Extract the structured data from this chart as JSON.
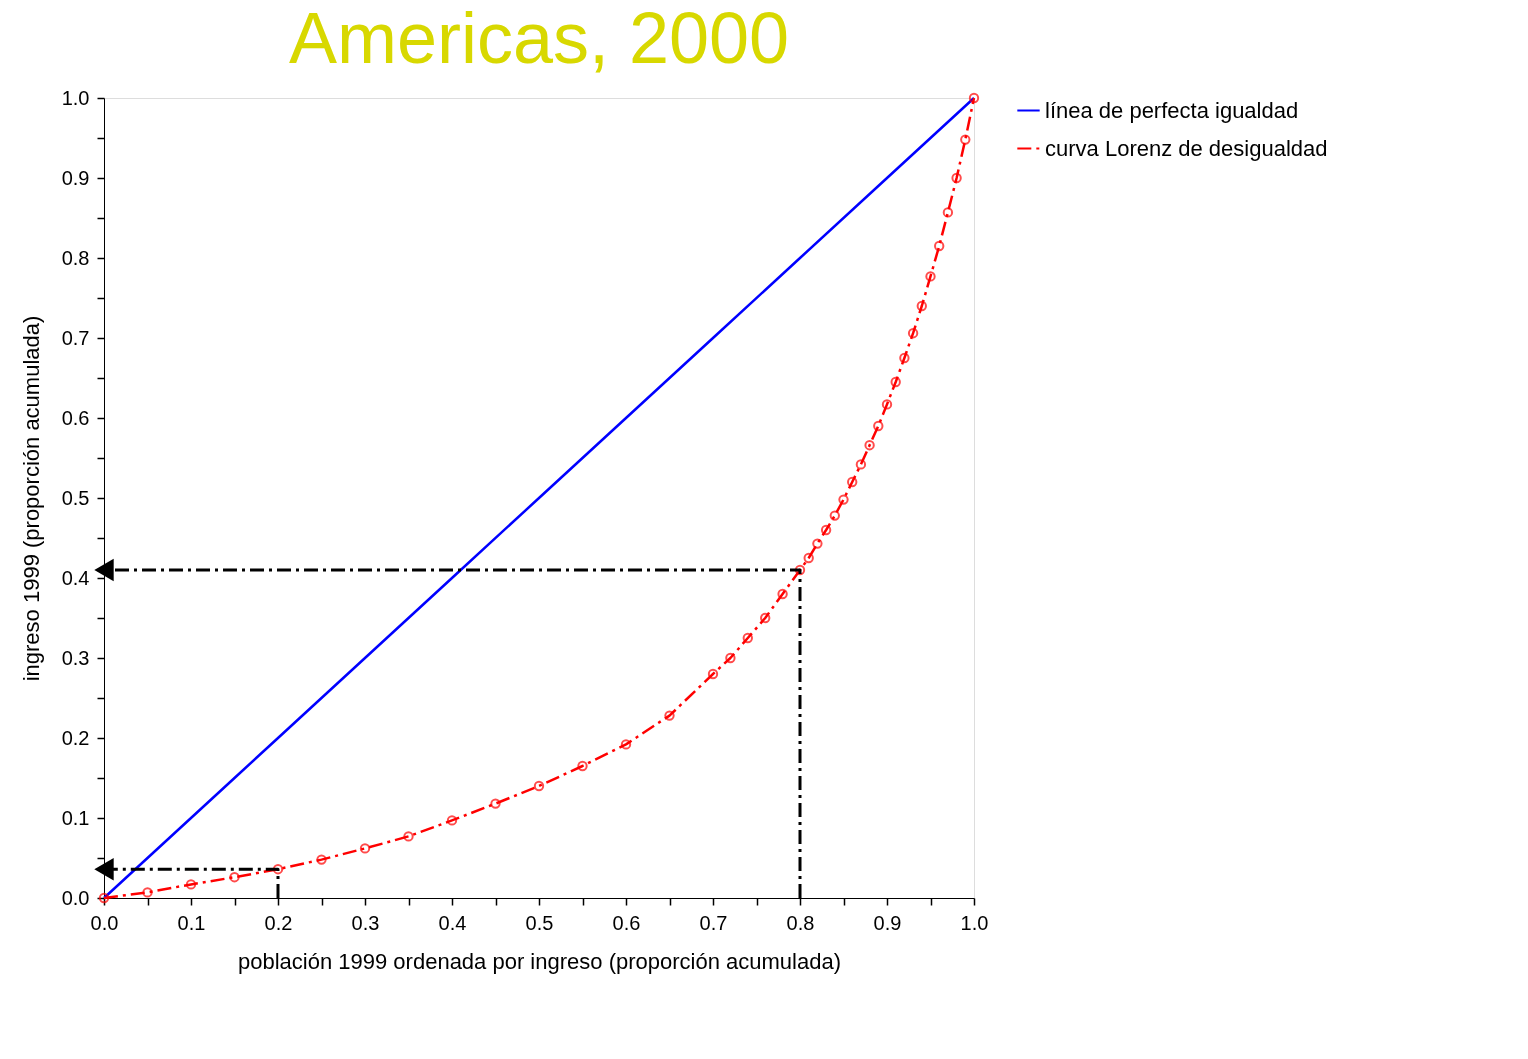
{
  "chart_data": {
    "type": "line",
    "title": "Americas, 2000",
    "xlabel": "población 1999 ordenada por ingreso (proporción acumulada)",
    "ylabel": "ingreso 1999 (proporción acumulada)",
    "xlim": [
      0,
      1
    ],
    "ylim": [
      0,
      1
    ],
    "xticks": [
      {
        "value": 0,
        "label": "0.0"
      },
      {
        "value": 0.05,
        "label": null
      },
      0.1,
      {
        "value": 0.15,
        "label": null
      },
      0.2,
      {
        "value": 0.25,
        "label": null
      },
      0.3,
      {
        "value": 0.35,
        "label": null
      },
      0.4,
      {
        "value": 0.45,
        "label": null
      },
      0.5,
      {
        "value": 0.55,
        "label": null
      },
      0.6,
      {
        "value": 0.65,
        "label": null
      },
      0.7,
      {
        "value": 0.75,
        "label": null
      },
      0.8,
      {
        "value": 0.85,
        "label": null
      },
      0.9,
      {
        "value": 0.95,
        "label": null
      },
      {
        "value": 1,
        "label": "1.0"
      }
    ],
    "yticks": [
      {
        "value": 0,
        "label": "0.0"
      },
      {
        "value": 0.05,
        "label": null
      },
      0.1,
      {
        "value": 0.15,
        "label": null
      },
      0.2,
      {
        "value": 0.25,
        "label": null
      },
      0.3,
      {
        "value": 0.35,
        "label": null
      },
      0.4,
      {
        "value": 0.45,
        "label": null
      },
      0.5,
      {
        "value": 0.55,
        "label": null
      },
      0.6,
      {
        "value": 0.65,
        "label": null
      },
      0.7,
      {
        "value": 0.75,
        "label": null
      },
      0.8,
      {
        "value": 0.85,
        "label": null
      },
      0.9,
      {
        "value": 0.95,
        "label": null
      },
      {
        "value": 1,
        "label": "1.0"
      }
    ],
    "grid": false,
    "legend": "right",
    "series": [
      {
        "name": "línea de perfecta igualdad",
        "color": "#0000ff",
        "line_style": "solid",
        "marker": "none",
        "x": [
          0,
          0.05,
          0.1,
          0.15,
          0.2,
          0.25,
          0.3,
          0.4,
          0.5,
          0.6,
          0.7,
          0.8,
          0.9,
          1
        ],
        "values": [
          0,
          0.05,
          0.1,
          0.15,
          0.2,
          0.25,
          0.3,
          0.4,
          0.5,
          0.6,
          0.7,
          0.8,
          0.9,
          1
        ]
      },
      {
        "name": "curva Lorenz de desigualdad",
        "color": "#ff0000",
        "line_style": "dashed",
        "marker": "circle",
        "x": [
          0,
          0.05,
          0.1,
          0.15,
          0.2,
          0.25,
          0.3,
          0.35,
          0.4,
          0.45,
          0.5,
          0.55,
          0.6,
          0.65,
          0.7,
          0.72,
          0.74,
          0.76,
          0.78,
          0.8,
          0.81,
          0.82,
          0.83,
          0.84,
          0.85,
          0.86,
          0.87,
          0.88,
          0.89,
          0.9,
          0.91,
          0.92,
          0.93,
          0.94,
          0.95,
          0.96,
          0.97,
          0.98,
          0.99,
          1
        ],
        "values": [
          0,
          0.007,
          0.017,
          0.026,
          0.036,
          0.048,
          0.062,
          0.077,
          0.097,
          0.118,
          0.14,
          0.165,
          0.192,
          0.228,
          0.28,
          0.3,
          0.325,
          0.35,
          0.38,
          0.41,
          0.425,
          0.443,
          0.46,
          0.478,
          0.498,
          0.52,
          0.542,
          0.566,
          0.59,
          0.617,
          0.645,
          0.675,
          0.706,
          0.74,
          0.777,
          0.815,
          0.857,
          0.9,
          0.948,
          1
        ]
      },
      {
        "color": "#000000",
        "line_style": "dashed",
        "marker": "none",
        "x": [
          0.2,
          0.2,
          0
        ],
        "values": [
          0,
          0.036,
          0.036
        ]
      },
      {
        "color": "#000000",
        "line_style": "dashed",
        "marker": "none",
        "x": [
          0.8,
          0.8,
          0
        ],
        "values": [
          0,
          0.41,
          0.41
        ]
      }
    ]
  }
}
